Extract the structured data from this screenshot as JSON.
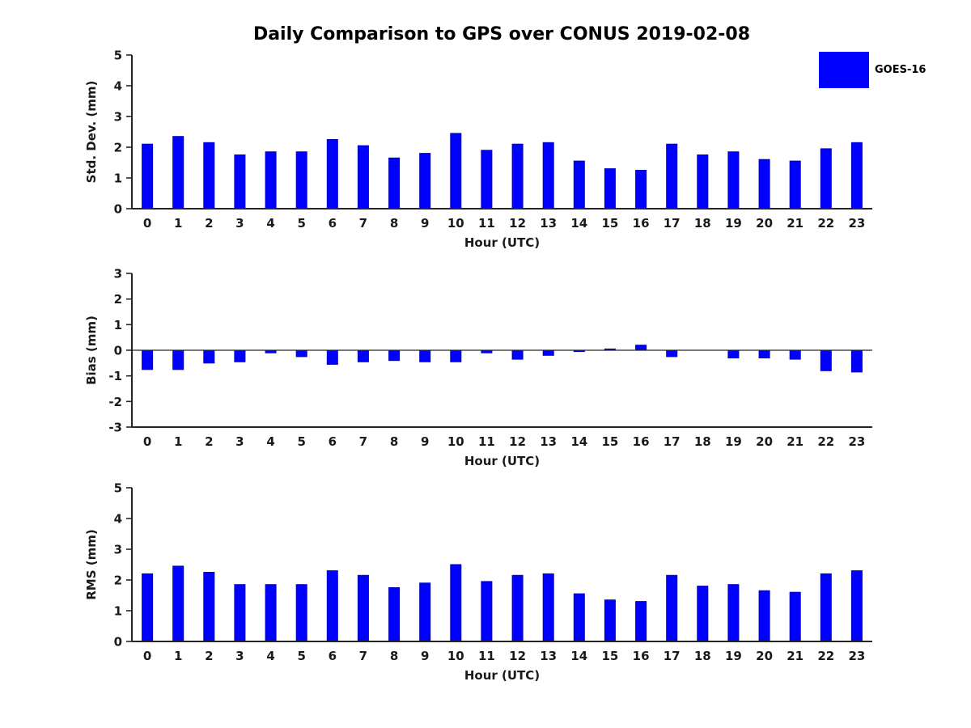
{
  "title": "Daily Comparison to GPS over CONUS 2019-02-08",
  "legend": {
    "label": "GOES-16",
    "color": "#0000ff"
  },
  "colors": {
    "bar_fill": "#0000ff",
    "bar_edge": "#0000bb",
    "axis": "#262626",
    "text": "#1a1a1a"
  },
  "chart_data": [
    {
      "type": "bar",
      "title": "",
      "ylabel": "Std. Dev. (mm)",
      "xlabel": "Hour (UTC)",
      "categories": [
        "0",
        "1",
        "2",
        "3",
        "4",
        "5",
        "6",
        "7",
        "8",
        "9",
        "10",
        "11",
        "12",
        "13",
        "14",
        "15",
        "16",
        "17",
        "18",
        "19",
        "20",
        "21",
        "22",
        "23"
      ],
      "values": [
        2.1,
        2.35,
        2.15,
        1.75,
        1.85,
        1.85,
        2.25,
        2.05,
        1.65,
        1.8,
        2.45,
        1.9,
        2.1,
        2.15,
        1.55,
        1.3,
        1.25,
        2.1,
        1.75,
        1.85,
        1.6,
        1.55,
        1.95,
        2.15
      ],
      "ylim": [
        0,
        5
      ],
      "yticks": [
        0,
        1,
        2,
        3,
        4,
        5
      ],
      "legend_entry": "GOES-16",
      "grid": false
    },
    {
      "type": "bar",
      "title": "",
      "ylabel": "Bias (mm)",
      "xlabel": "Hour (UTC)",
      "categories": [
        "0",
        "1",
        "2",
        "3",
        "4",
        "5",
        "6",
        "7",
        "8",
        "9",
        "10",
        "11",
        "12",
        "13",
        "14",
        "15",
        "16",
        "17",
        "18",
        "19",
        "20",
        "21",
        "22",
        "23"
      ],
      "values": [
        -0.75,
        -0.75,
        -0.5,
        -0.45,
        -0.1,
        -0.25,
        -0.55,
        -0.45,
        -0.4,
        -0.45,
        -0.45,
        -0.1,
        -0.35,
        -0.2,
        -0.05,
        0.05,
        0.2,
        -0.25,
        0.0,
        -0.3,
        -0.3,
        -0.35,
        -0.8,
        -0.85
      ],
      "ylim": [
        -3,
        3
      ],
      "yticks": [
        -3,
        -2,
        -1,
        0,
        1,
        2,
        3
      ],
      "legend_entry": "GOES-16",
      "grid": false
    },
    {
      "type": "bar",
      "title": "",
      "ylabel": "RMS (mm)",
      "xlabel": "Hour (UTC)",
      "categories": [
        "0",
        "1",
        "2",
        "3",
        "4",
        "5",
        "6",
        "7",
        "8",
        "9",
        "10",
        "11",
        "12",
        "13",
        "14",
        "15",
        "16",
        "17",
        "18",
        "19",
        "20",
        "21",
        "22",
        "23"
      ],
      "values": [
        2.2,
        2.45,
        2.25,
        1.85,
        1.85,
        1.85,
        2.3,
        2.15,
        1.75,
        1.9,
        2.5,
        1.95,
        2.15,
        2.2,
        1.55,
        1.35,
        1.3,
        2.15,
        1.8,
        1.85,
        1.65,
        1.6,
        2.2,
        2.3
      ],
      "ylim": [
        0,
        5
      ],
      "yticks": [
        0,
        1,
        2,
        3,
        4,
        5
      ],
      "legend_entry": "GOES-16",
      "grid": false
    }
  ]
}
